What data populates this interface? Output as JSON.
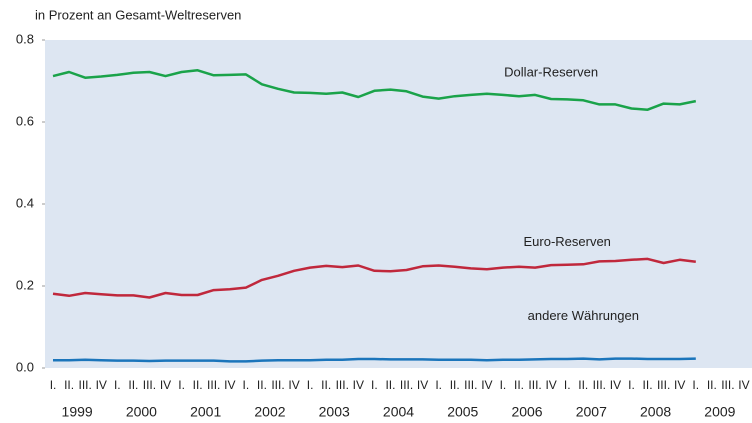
{
  "chart_data": {
    "type": "line",
    "axis_label": "in Prozent an Gesamt-Weltreserven",
    "categories": [
      "I.",
      "II.",
      "III.",
      "IV",
      "I.",
      "II.",
      "III.",
      "IV",
      "I.",
      "II.",
      "III.",
      "IV",
      "I.",
      "II.",
      "III.",
      "IV",
      "I.",
      "II.",
      "III.",
      "IV",
      "I.",
      "II.",
      "III.",
      "IV",
      "I.",
      "II.",
      "III.",
      "IV",
      "I.",
      "II.",
      "III.",
      "IV",
      "I.",
      "II.",
      "III.",
      "IV",
      "I.",
      "II.",
      "III.",
      "IV",
      "I.",
      "II.",
      "III.",
      "IV"
    ],
    "years": [
      "1999",
      "2000",
      "2001",
      "2002",
      "2003",
      "2004",
      "2005",
      "2006",
      "2007",
      "2008",
      "2009"
    ],
    "series": [
      {
        "name": "Dollar-Reserven",
        "color": "#1aa34a",
        "values": [
          0.712,
          0.722,
          0.708,
          0.711,
          0.715,
          0.72,
          0.722,
          0.712,
          0.722,
          0.726,
          0.714,
          0.715,
          0.716,
          0.692,
          0.681,
          0.672,
          0.671,
          0.669,
          0.672,
          0.661,
          0.676,
          0.679,
          0.675,
          0.662,
          0.657,
          0.663,
          0.666,
          0.669,
          0.666,
          0.663,
          0.666,
          0.656,
          0.655,
          0.653,
          0.643,
          0.643,
          0.633,
          0.63,
          0.645,
          0.643,
          0.651,
          null,
          null,
          null
        ]
      },
      {
        "name": "Euro-Reserven",
        "color": "#c0283c",
        "values": [
          0.181,
          0.176,
          0.183,
          0.18,
          0.177,
          0.177,
          0.172,
          0.183,
          0.178,
          0.178,
          0.19,
          0.192,
          0.196,
          0.215,
          0.225,
          0.237,
          0.245,
          0.249,
          0.246,
          0.25,
          0.237,
          0.236,
          0.239,
          0.248,
          0.25,
          0.247,
          0.243,
          0.241,
          0.245,
          0.247,
          0.245,
          0.251,
          0.252,
          0.253,
          0.26,
          0.261,
          0.264,
          0.266,
          0.256,
          0.264,
          0.259,
          null,
          null,
          null
        ]
      },
      {
        "name": "andere Währungen",
        "color": "#1b75bb",
        "values": [
          0.019,
          0.019,
          0.02,
          0.019,
          0.018,
          0.018,
          0.017,
          0.018,
          0.018,
          0.018,
          0.018,
          0.016,
          0.016,
          0.018,
          0.019,
          0.019,
          0.019,
          0.02,
          0.02,
          0.022,
          0.022,
          0.021,
          0.021,
          0.021,
          0.02,
          0.02,
          0.02,
          0.019,
          0.02,
          0.02,
          0.021,
          0.022,
          0.022,
          0.023,
          0.021,
          0.023,
          0.023,
          0.022,
          0.022,
          0.022,
          0.023,
          null,
          null,
          null
        ]
      }
    ],
    "ylim": [
      0,
      0.8
    ],
    "yticks": [
      {
        "value": 0,
        "label": "0.0"
      },
      0.2,
      0.4,
      0.6,
      0.8
    ]
  }
}
